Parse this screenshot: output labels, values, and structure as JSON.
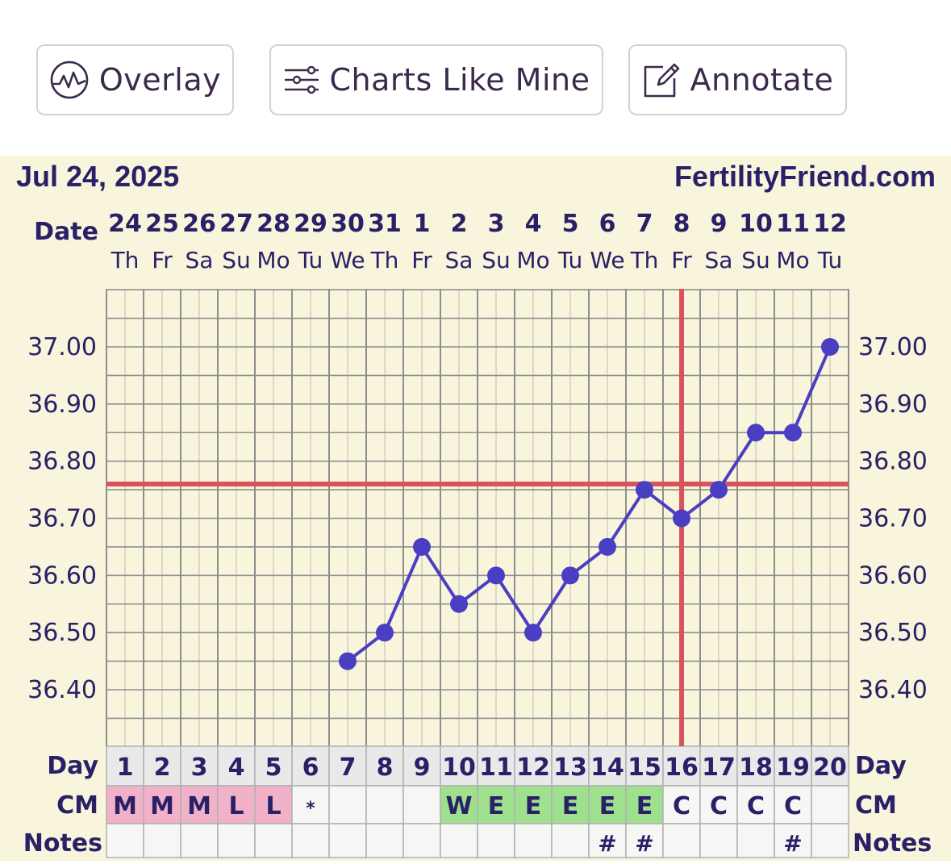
{
  "toolbar": {
    "overlay_label": "Overlay",
    "charts_like_mine_label": "Charts Like Mine",
    "annotate_label": "Annotate"
  },
  "chart_header": {
    "date": "Jul 24, 2025",
    "brand": "FertilityFriend.com"
  },
  "row_labels": {
    "date": "Date",
    "day_left": "Day",
    "day_right": "Day",
    "cm_left": "CM",
    "cm_right": "CM",
    "notes_left": "Notes",
    "notes_right": "Notes"
  },
  "colors": {
    "background": "#f8f5dc",
    "line": "#4a3fc2",
    "coverline": "#d9535d",
    "grid": "#8e8e8e",
    "menstruation_cell": "#f1b2c9",
    "eggwhite_cell": "#9fe08f",
    "text": "#2a2068"
  },
  "chart_data": {
    "type": "line",
    "title": "",
    "xlabel": "Date",
    "ylabel": "",
    "dates": [
      "24",
      "25",
      "26",
      "27",
      "28",
      "29",
      "30",
      "31",
      "1",
      "2",
      "3",
      "4",
      "5",
      "6",
      "7",
      "8",
      "9",
      "10",
      "11",
      "12"
    ],
    "weekdays": [
      "Th",
      "Fr",
      "Sa",
      "Su",
      "Mo",
      "Tu",
      "We",
      "Th",
      "Fr",
      "Sa",
      "Su",
      "Mo",
      "Tu",
      "We",
      "Th",
      "Fr",
      "Sa",
      "Su",
      "Mo",
      "Tu"
    ],
    "cycle_days": [
      1,
      2,
      3,
      4,
      5,
      6,
      7,
      8,
      9,
      10,
      11,
      12,
      13,
      14,
      15,
      16,
      17,
      18,
      19,
      20
    ],
    "series": [
      {
        "values": [
          null,
          null,
          null,
          null,
          null,
          null,
          36.45,
          36.5,
          36.65,
          36.55,
          36.6,
          36.5,
          36.6,
          36.65,
          36.75,
          36.7,
          36.75,
          36.85,
          36.85,
          37.0
        ]
      }
    ],
    "yticks": [
      "37.00",
      "36.90",
      "36.80",
      "36.70",
      "36.60",
      "36.50",
      "36.40"
    ],
    "ylim": [
      36.3,
      37.1
    ],
    "coverline": 36.76,
    "ovulation_day": 16,
    "cervical_mucus": [
      "M",
      "M",
      "M",
      "L",
      "L",
      "*",
      "",
      "",
      "",
      "W",
      "E",
      "E",
      "E",
      "E",
      "E",
      "C",
      "C",
      "C",
      "C",
      ""
    ],
    "cervical_mucus_types": [
      "menstruation",
      "menstruation",
      "menstruation",
      "menstruation",
      "menstruation",
      "dot",
      "empty",
      "empty",
      "empty",
      "eggwhite",
      "eggwhite",
      "eggwhite",
      "eggwhite",
      "eggwhite",
      "eggwhite",
      "creamy",
      "creamy",
      "creamy",
      "creamy",
      "empty"
    ],
    "notes": [
      "",
      "",
      "",
      "",
      "",
      "",
      "",
      "",
      "",
      "",
      "",
      "",
      "",
      "#",
      "#",
      "",
      "",
      "",
      "#",
      ""
    ],
    "grid": true,
    "legend": "none"
  }
}
